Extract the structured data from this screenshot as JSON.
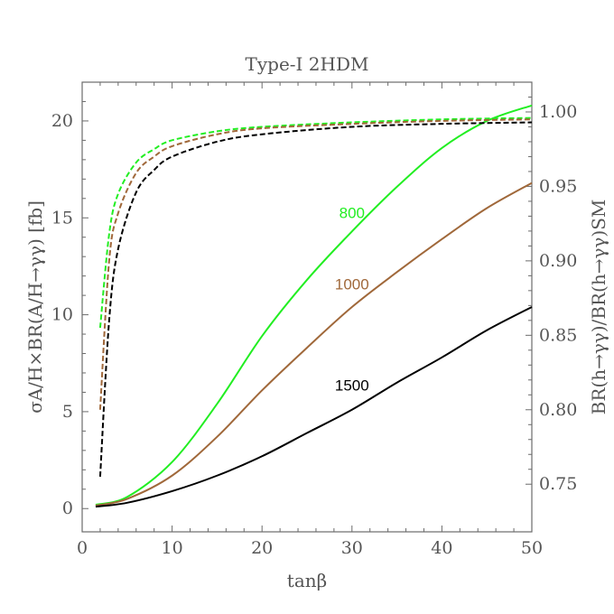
{
  "chart_data": {
    "type": "line",
    "title": "Type-I 2HDM",
    "xlabel": "tanβ",
    "ylabel_left": "σA/H×BR(A/H→γγ) [fb]",
    "ylabel_right": "BR(h→γγ)/BR(h→γγ)SM",
    "xlim": [
      0,
      50
    ],
    "ylim_left": [
      -1.2,
      22
    ],
    "ylim_right": [
      0.718,
      1.02
    ],
    "x_ticks": [
      0,
      10,
      20,
      30,
      40,
      50
    ],
    "x_tick_labels": [
      "0",
      "10",
      "20",
      "30",
      "40",
      "50"
    ],
    "y_left_ticks": [
      0,
      5,
      10,
      15,
      20
    ],
    "y_left_tick_labels": [
      "0",
      "5",
      "10",
      "15",
      "20"
    ],
    "y_right_ticks": [
      0.75,
      0.8,
      0.85,
      0.9,
      0.95,
      1.0
    ],
    "y_right_tick_labels": [
      "0.75",
      "0.80",
      "0.85",
      "0.90",
      "0.95",
      "1.00"
    ],
    "grid": false,
    "colors": {
      "green": "#22ee22",
      "brown": "#a0683a",
      "black": "#000000"
    },
    "series": [
      {
        "name": "800",
        "axis": "left",
        "style": "solid",
        "color": "#22ee22",
        "x": [
          1.5,
          5,
          10,
          15,
          20,
          25,
          30,
          35,
          40,
          45,
          50
        ],
        "values": [
          0.2,
          0.6,
          2.4,
          5.4,
          8.9,
          11.8,
          14.3,
          16.6,
          18.6,
          20.0,
          20.8
        ]
      },
      {
        "name": "1000",
        "axis": "left",
        "style": "solid",
        "color": "#a0683a",
        "x": [
          1.5,
          5,
          10,
          15,
          20,
          25,
          30,
          35,
          40,
          45,
          50
        ],
        "values": [
          0.15,
          0.5,
          1.7,
          3.7,
          6.1,
          8.3,
          10.4,
          12.2,
          13.9,
          15.5,
          16.8
        ]
      },
      {
        "name": "1500",
        "axis": "left",
        "style": "solid",
        "color": "#000000",
        "x": [
          1.5,
          5,
          10,
          15,
          20,
          25,
          30,
          35,
          40,
          45,
          50
        ],
        "values": [
          0.1,
          0.3,
          0.9,
          1.7,
          2.7,
          3.9,
          5.1,
          6.5,
          7.8,
          9.2,
          10.4
        ]
      },
      {
        "name": "800 ratio",
        "axis": "right",
        "style": "dashed",
        "color": "#22ee22",
        "x": [
          2,
          3,
          4,
          6,
          8,
          10,
          15,
          20,
          30,
          40,
          50
        ],
        "values": [
          0.855,
          0.918,
          0.945,
          0.966,
          0.975,
          0.981,
          0.987,
          0.99,
          0.993,
          0.995,
          0.996
        ]
      },
      {
        "name": "1000 ratio",
        "axis": "right",
        "style": "dashed",
        "color": "#a0683a",
        "x": [
          2,
          3,
          4,
          6,
          8,
          10,
          15,
          20,
          30,
          40,
          50
        ],
        "values": [
          0.8,
          0.9,
          0.932,
          0.959,
          0.97,
          0.977,
          0.985,
          0.989,
          0.992,
          0.994,
          0.995
        ]
      },
      {
        "name": "1500 ratio",
        "axis": "right",
        "style": "dashed",
        "color": "#000000",
        "x": [
          2,
          3,
          4,
          6,
          8,
          10,
          15,
          20,
          30,
          40,
          50
        ],
        "values": [
          0.755,
          0.86,
          0.908,
          0.946,
          0.961,
          0.97,
          0.98,
          0.985,
          0.99,
          0.992,
          0.993
        ]
      }
    ],
    "annotations": [
      {
        "text": "800",
        "x": 30,
        "y": 15.0,
        "color": "#22ee22"
      },
      {
        "text": "1000",
        "x": 30,
        "y": 11.3,
        "color": "#a0683a"
      },
      {
        "text": "1500",
        "x": 30,
        "y": 6.1,
        "color": "#000000"
      }
    ]
  }
}
